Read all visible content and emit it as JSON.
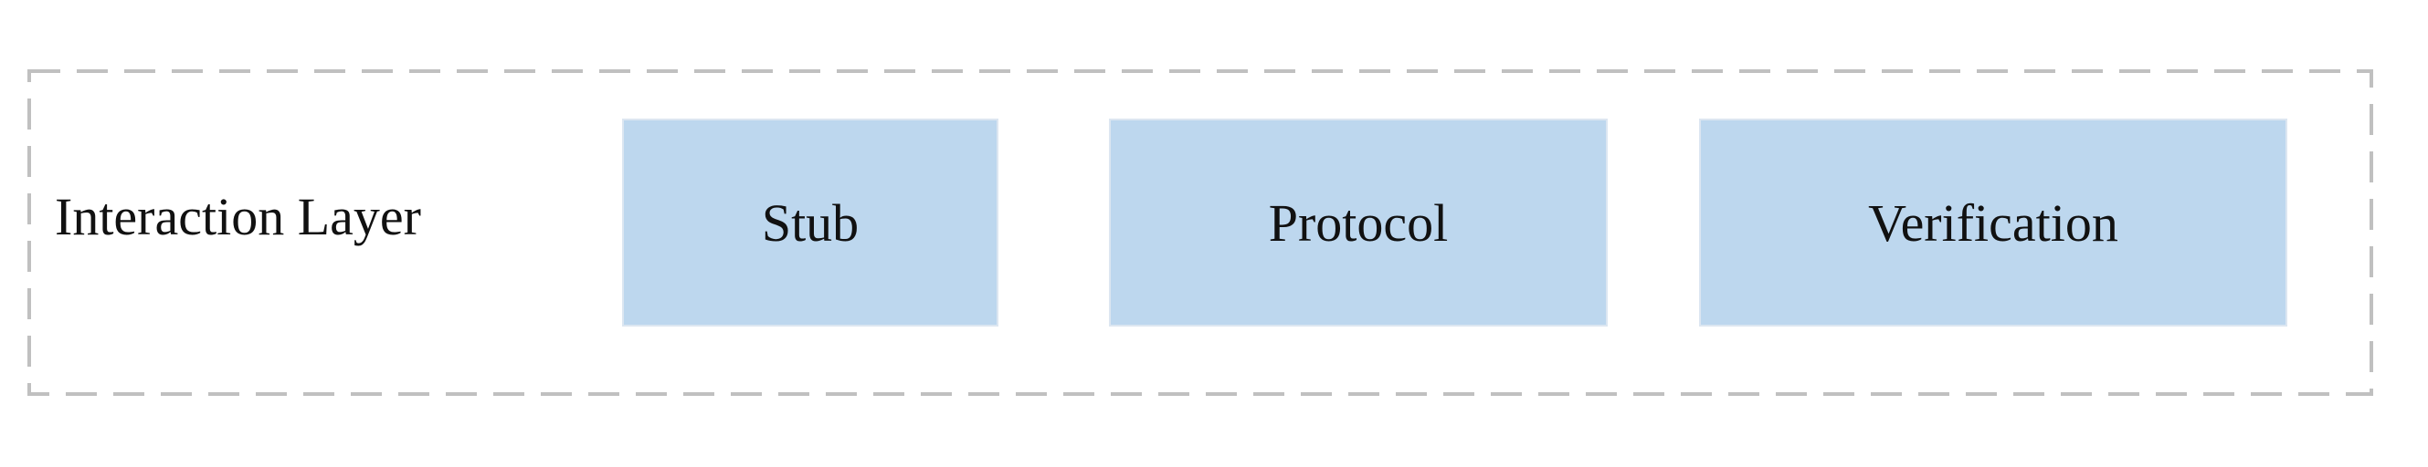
{
  "diagram": {
    "layer_label": "Interaction Layer",
    "modules": [
      {
        "label": "Stub"
      },
      {
        "label": "Protocol"
      },
      {
        "label": "Verification"
      }
    ]
  },
  "colors": {
    "module_fill": "#bdd7ee",
    "frame_dash": "#c0c0c0",
    "text": "#111111"
  }
}
